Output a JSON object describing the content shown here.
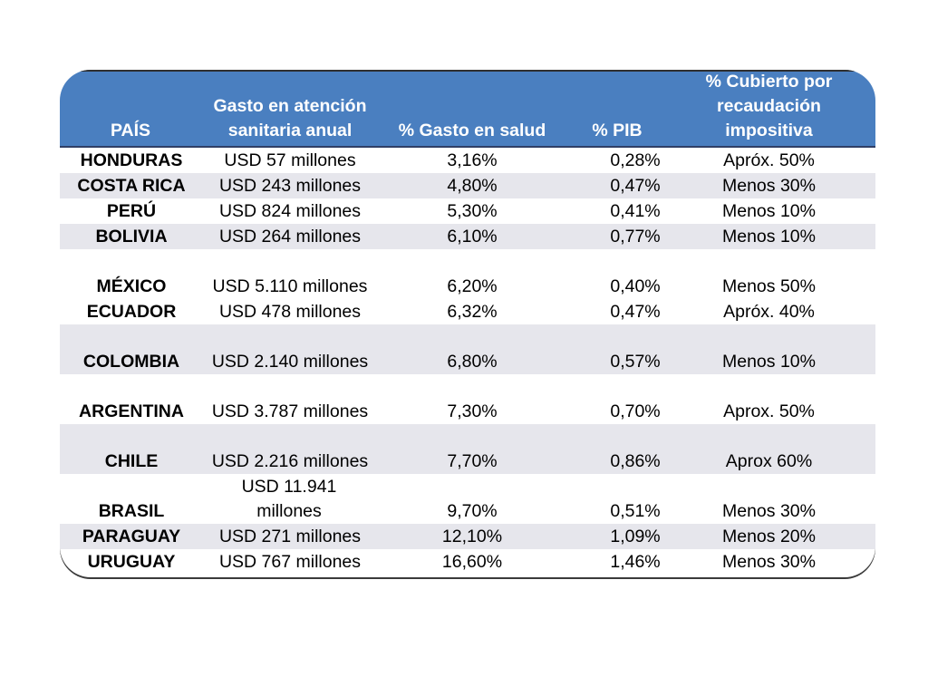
{
  "table": {
    "headers": [
      "PAÍS",
      "Gasto en atención sanitaria anual",
      "% Gasto en salud",
      "% PIB",
      "% Cubierto por recaudación impositiva"
    ],
    "rows": [
      {
        "country": "HONDURAS",
        "gasto": "USD 57 millones",
        "salud": "3,16%",
        "pib": "0,28%",
        "cubierto": "Apróx. 50%"
      },
      {
        "country": "COSTA RICA",
        "gasto": "USD 243 millones",
        "salud": "4,80%",
        "pib": "0,47%",
        "cubierto": "Menos 30%"
      },
      {
        "country": "PERÚ",
        "gasto": "USD 824 millones",
        "salud": "5,30%",
        "pib": "0,41%",
        "cubierto": "Menos 10%"
      },
      {
        "country": "BOLIVIA",
        "gasto": "USD 264 millones",
        "salud": "6,10%",
        "pib": "0,77%",
        "cubierto": "Menos 10%"
      },
      {
        "country": "MÉXICO",
        "gasto": "USD 5.110 millones",
        "salud": "6,20%",
        "pib": "0,40%",
        "cubierto": "Menos 50%"
      },
      {
        "country": "ECUADOR",
        "gasto": "USD 478 millones",
        "salud": "6,32%",
        "pib": "0,47%",
        "cubierto": "Apróx. 40%"
      },
      {
        "country": "COLOMBIA",
        "gasto": "USD 2.140 millones",
        "salud": "6,80%",
        "pib": "0,57%",
        "cubierto": "Menos 10%"
      },
      {
        "country": "ARGENTINA",
        "gasto": "USD 3.787 millones",
        "salud": "7,30%",
        "pib": "0,70%",
        "cubierto": "Aprox. 50%"
      },
      {
        "country": "CHILE",
        "gasto": "USD 2.216 millones",
        "salud": "7,70%",
        "pib": "0,86%",
        "cubierto": "Aprox 60%"
      },
      {
        "country": "BRASIL",
        "gasto": "USD 11.941 millones",
        "salud": "9,70%",
        "pib": "0,51%",
        "cubierto": "Menos 30%"
      },
      {
        "country": "PARAGUAY",
        "gasto": "USD 271 millones",
        "salud": "12,10%",
        "pib": "1,09%",
        "cubierto": "Menos 20%"
      },
      {
        "country": "URUGUAY",
        "gasto": "USD 767 millones",
        "salud": "16,60%",
        "pib": "1,46%",
        "cubierto": "Menos 30%"
      }
    ]
  },
  "colors": {
    "header_bg": "#4a7fc0",
    "header_text": "#ffffff",
    "row_shade": "#e6e6ec"
  }
}
